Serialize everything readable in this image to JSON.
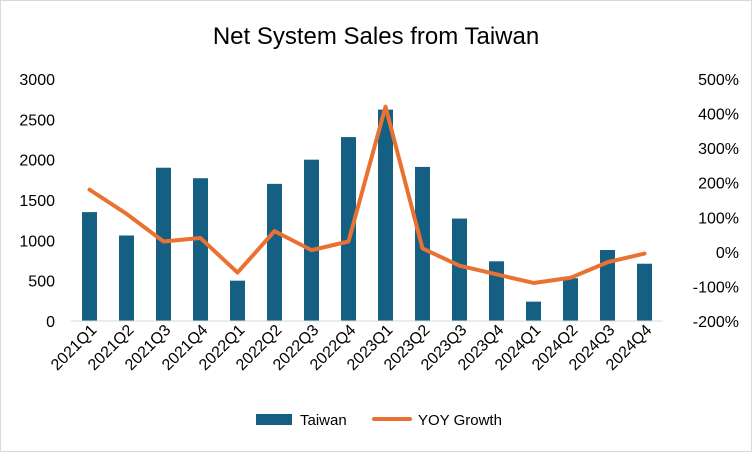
{
  "chart_data": {
    "type": "bar+line",
    "title": "Net System Sales from Taiwan",
    "categories": [
      "2021Q1",
      "2021Q2",
      "2021Q3",
      "2021Q4",
      "2022Q1",
      "2022Q2",
      "2022Q3",
      "2022Q4",
      "2023Q1",
      "2023Q2",
      "2023Q3",
      "2023Q4",
      "2024Q1",
      "2024Q2",
      "2024Q3",
      "2024Q4"
    ],
    "series": [
      {
        "name": "Taiwan",
        "type": "bar",
        "axis": "left",
        "color": "#156082",
        "values": [
          1350,
          1060,
          1900,
          1770,
          500,
          1700,
          2000,
          2280,
          2620,
          1910,
          1270,
          740,
          240,
          530,
          880,
          710
        ]
      },
      {
        "name": "YOY Growth",
        "type": "line",
        "axis": "right",
        "color": "#E97132",
        "values": [
          1.8,
          1.1,
          0.3,
          0.4,
          -0.6,
          0.6,
          0.05,
          0.3,
          4.2,
          0.1,
          -0.4,
          -0.65,
          -0.9,
          -0.75,
          -0.3,
          -0.05
        ]
      }
    ],
    "y_left": {
      "min": 0,
      "max": 3000,
      "ticks": [
        "0",
        "500",
        "1000",
        "1500",
        "2000",
        "2500",
        "3000"
      ]
    },
    "y_right": {
      "min": -2,
      "max": 5,
      "ticks": [
        "-200%",
        "-100%",
        "0%",
        "100%",
        "200%",
        "300%",
        "400%",
        "500%"
      ]
    },
    "grid": false,
    "legend_position": "bottom"
  }
}
